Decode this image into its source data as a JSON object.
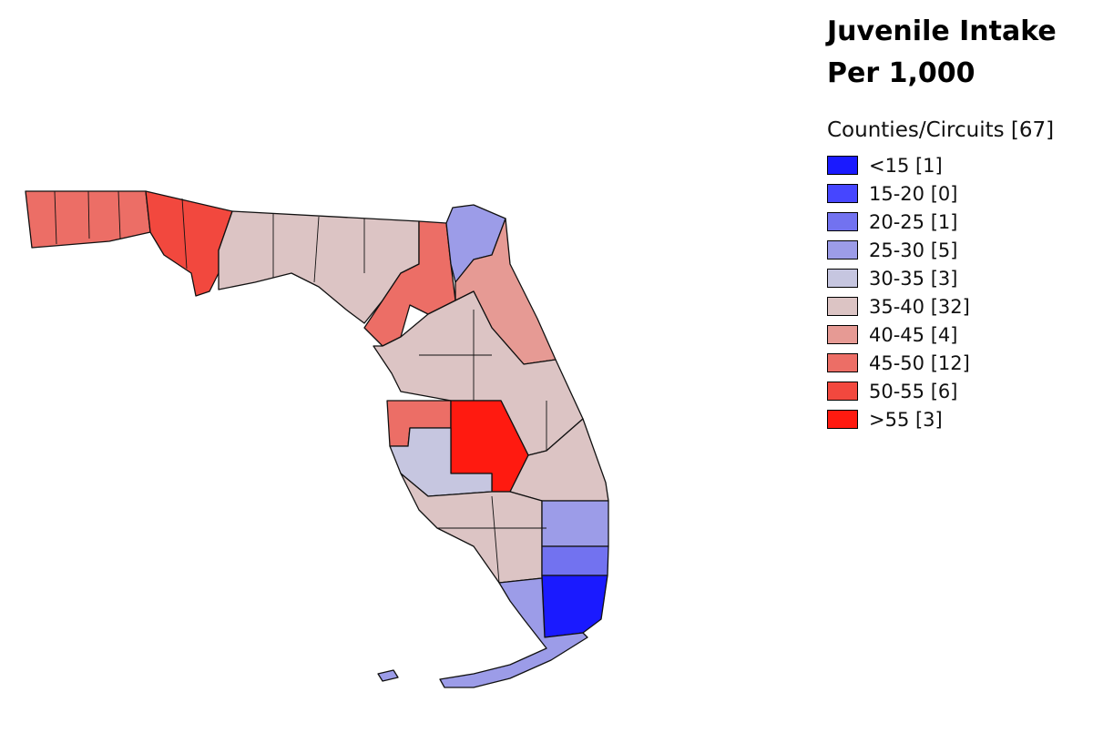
{
  "title": [
    "Juvenile Intake",
    "Per 1,000"
  ],
  "legend": {
    "title": "Counties/Circuits [67]",
    "items": [
      {
        "label": "<15 [1]",
        "color": "#1a1aff"
      },
      {
        "label": "15-20 [0]",
        "color": "#4646ff"
      },
      {
        "label": "20-25 [1]",
        "color": "#7272f0"
      },
      {
        "label": "25-30 [5]",
        "color": "#9c9ce8"
      },
      {
        "label": "30-35 [3]",
        "color": "#c6c6e0"
      },
      {
        "label": "35-40 [32]",
        "color": "#dcc4c4"
      },
      {
        "label": "40-45 [4]",
        "color": "#e69a94"
      },
      {
        "label": "45-50 [12]",
        "color": "#ec6e66"
      },
      {
        "label": "50-55 [6]",
        "color": "#f2483e"
      },
      {
        "label": ">55 [3]",
        "color": "#ff1a10"
      }
    ]
  }
}
